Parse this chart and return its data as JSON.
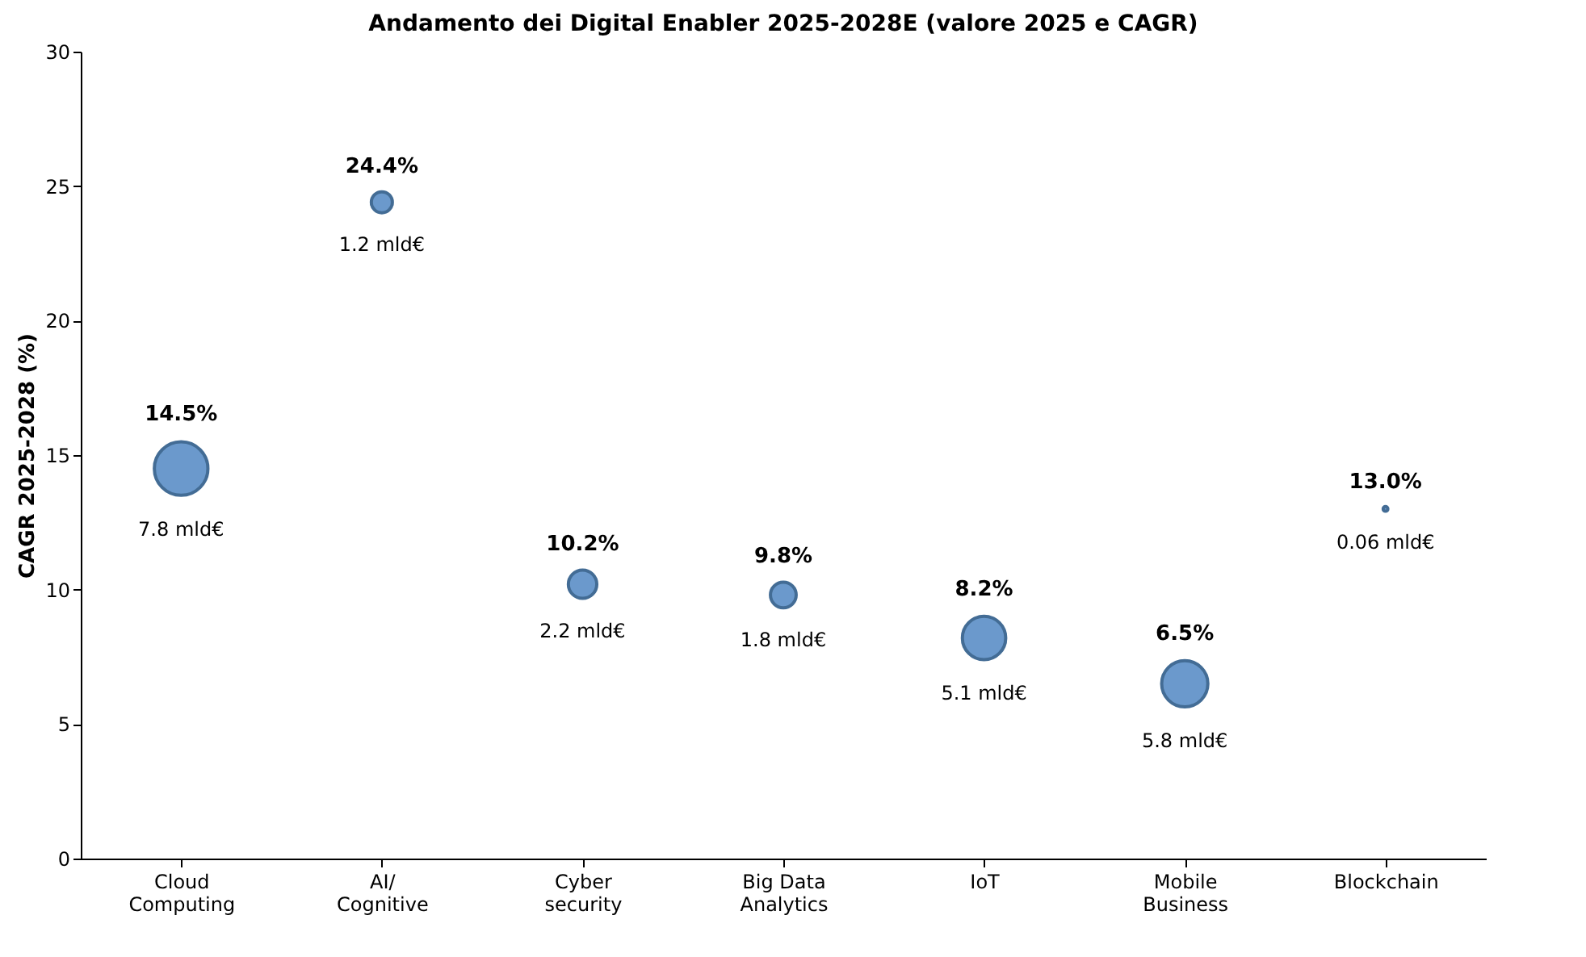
{
  "chart_data": {
    "type": "bubble",
    "title": "Andamento dei Digital Enabler 2025-2028E (valore 2025 e CAGR)",
    "ylabel": "CAGR 2025-2028 (%)",
    "categories": [
      "Cloud Computing",
      "AI/ Cognitive",
      "Cyber security",
      "Big Data Analytics",
      "IoT",
      "Mobile Business",
      "Blockchain"
    ],
    "series": [
      {
        "color": "#5b8fc7",
        "values": [
          14.5,
          24.4,
          10.2,
          9.8,
          8.2,
          6.5,
          13.0
        ],
        "sizes": [
          1,
          0.154,
          0.282,
          0.231,
          0.654,
          0.744,
          0.0077
        ],
        "value_labels": [
          "14.5%",
          "24.4%",
          "10.2%",
          "9.8%",
          "8.2%",
          "6.5%",
          "13.0%"
        ]
      }
    ],
    "annotations": [
      {
        "text": "7.8 mld€",
        "x": "Cloud Computing",
        "y": 14.5
      },
      {
        "text": "1.2 mld€",
        "x": "AI/ Cognitive",
        "y": 24.4
      },
      {
        "text": "2.2 mld€",
        "x": "Cyber security",
        "y": 10.2
      },
      {
        "text": "1.8 mld€",
        "x": "Big Data Analytics",
        "y": 9.8
      },
      {
        "text": "5.1 mld€",
        "x": "IoT",
        "y": 8.2
      },
      {
        "text": "5.8 mld€",
        "x": "Mobile Business",
        "y": 6.5
      },
      {
        "text": "0.06 mld€",
        "x": "Blockchain",
        "y": 13.0
      }
    ],
    "ylim": [
      0,
      30
    ],
    "yticks": [
      0,
      5,
      10,
      15,
      20,
      25,
      30
    ],
    "grid": false,
    "marker": "circle"
  }
}
